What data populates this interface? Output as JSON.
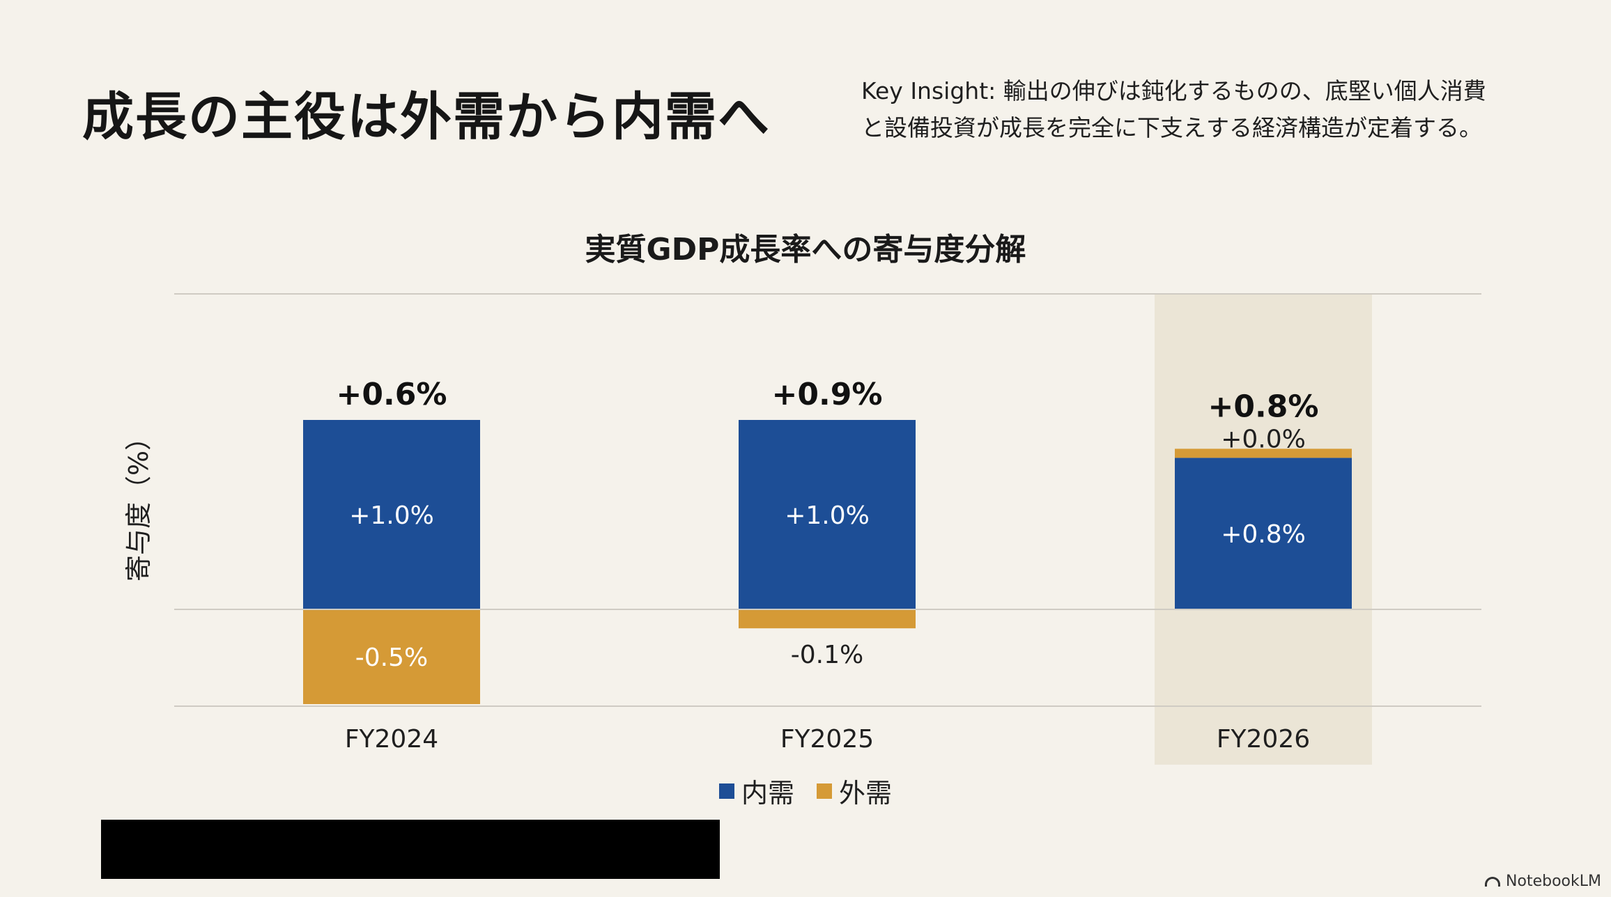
{
  "slide": {
    "title": "成長の主役は外需から内需へ",
    "insight_line1": "Key Insight: 輸出の伸びは鈍化するものの、底堅い個人消費",
    "insight_line2": "と設備投資が成長を完全に下支えする経済構造が定着する。",
    "brand": "NotebookLM"
  },
  "colors": {
    "domestic": "#1d4e96",
    "external": "#d59a36",
    "highlight": "#ebe5d6",
    "gridline": "#cfcbc3"
  },
  "chart_data": {
    "type": "bar",
    "stacked": true,
    "title": "実質GDP成長率への寄与度分解",
    "ylabel": "寄与度（%）",
    "xlabel": "",
    "categories": [
      "FY2024",
      "FY2025",
      "FY2026"
    ],
    "series": [
      {
        "name": "内需",
        "values": [
          1.0,
          1.0,
          0.8
        ],
        "labels": [
          "+1.0%",
          "+1.0%",
          "+0.8%"
        ]
      },
      {
        "name": "外需",
        "values": [
          -0.5,
          -0.1,
          0.0
        ],
        "labels": [
          "-0.5%",
          "-0.1%",
          "+0.0%"
        ]
      }
    ],
    "totals": [
      0.6,
      0.9,
      0.8
    ],
    "total_labels": [
      "+0.6%",
      "+0.9%",
      "+0.8%"
    ],
    "ylim": [
      -1.0,
      3.0
    ],
    "highlight_category": "FY2026",
    "legend_position": "bottom",
    "grid": true
  }
}
